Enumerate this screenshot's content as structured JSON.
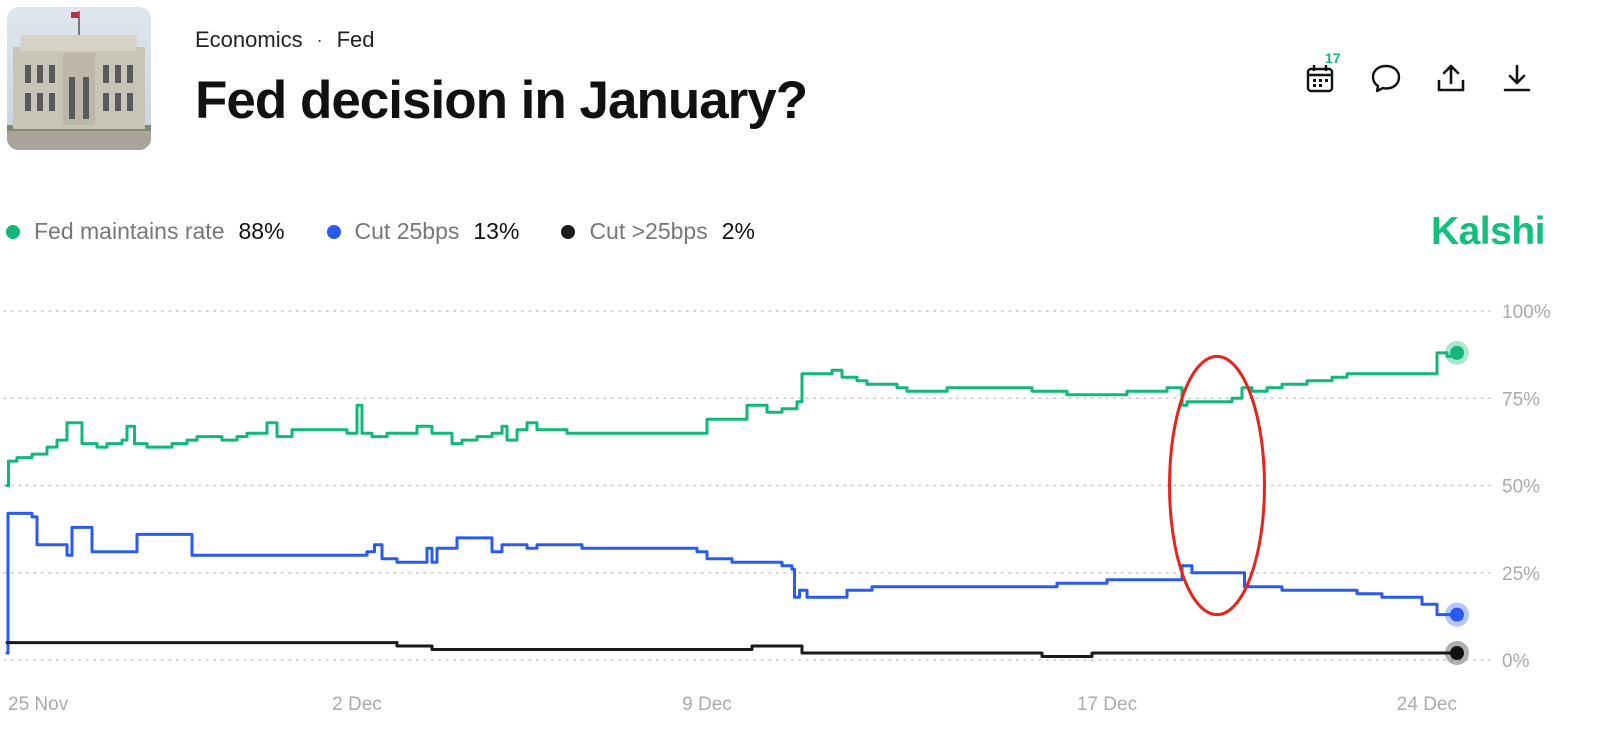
{
  "breadcrumb": {
    "category": "Economics",
    "separator": "·",
    "subcategory": "Fed"
  },
  "title": "Fed decision in January?",
  "toolbar": {
    "calendar_badge": "17"
  },
  "icons": {
    "calendar": "calendar-icon",
    "comment": "comment-icon",
    "share": "share-icon",
    "download": "download-icon"
  },
  "legend": [
    {
      "name": "Fed maintains rate",
      "value": "88%",
      "color": "#12b87a"
    },
    {
      "name": "Cut 25bps",
      "value": "13%",
      "color": "#2a5bf0"
    },
    {
      "name": "Cut >25bps",
      "value": "2%",
      "color": "#1a1a1a"
    }
  ],
  "brand": "Kalshi",
  "chart_data": {
    "type": "line",
    "x_ticks": [
      "25 Nov",
      "2 Dec",
      "9 Dec",
      "17 Dec",
      "24 Dec"
    ],
    "x_tick_days": [
      0,
      7,
      14,
      22,
      29
    ],
    "x_range_days": [
      0,
      29
    ],
    "y_ticks": [
      "100%",
      "75%",
      "50%",
      "25%",
      "0%"
    ],
    "y_tick_values": [
      100,
      75,
      50,
      25,
      0
    ],
    "ylim": [
      0,
      100
    ],
    "grid": true,
    "legend_position": "top-left",
    "annotation": {
      "type": "ellipse",
      "color": "#e8231c",
      "x_center_day": 24.2,
      "y_center": 50,
      "x_radius_days": 0.95,
      "y_radius": 37
    },
    "series": [
      {
        "name": "Fed maintains rate",
        "color": "#12b87a",
        "points": [
          [
            0,
            50
          ],
          [
            0.03,
            57
          ],
          [
            0.2,
            58
          ],
          [
            0.5,
            59
          ],
          [
            0.8,
            61
          ],
          [
            1.0,
            63
          ],
          [
            1.2,
            68
          ],
          [
            1.4,
            68
          ],
          [
            1.5,
            62
          ],
          [
            1.8,
            61
          ],
          [
            2.0,
            62
          ],
          [
            2.3,
            63
          ],
          [
            2.4,
            67
          ],
          [
            2.55,
            62
          ],
          [
            2.8,
            61
          ],
          [
            3.1,
            61
          ],
          [
            3.3,
            62
          ],
          [
            3.6,
            63
          ],
          [
            3.8,
            64
          ],
          [
            4.1,
            64
          ],
          [
            4.3,
            63
          ],
          [
            4.6,
            64
          ],
          [
            4.8,
            65
          ],
          [
            5.0,
            65
          ],
          [
            5.2,
            68
          ],
          [
            5.4,
            64
          ],
          [
            5.7,
            66
          ],
          [
            6.0,
            66
          ],
          [
            6.4,
            66
          ],
          [
            6.8,
            65
          ],
          [
            7.0,
            73
          ],
          [
            7.1,
            65
          ],
          [
            7.3,
            64
          ],
          [
            7.6,
            65
          ],
          [
            8.0,
            65
          ],
          [
            8.2,
            67
          ],
          [
            8.5,
            65
          ],
          [
            8.9,
            62
          ],
          [
            9.1,
            63
          ],
          [
            9.4,
            64
          ],
          [
            9.7,
            65
          ],
          [
            9.9,
            67
          ],
          [
            10.0,
            63
          ],
          [
            10.2,
            66
          ],
          [
            10.4,
            68
          ],
          [
            10.6,
            66
          ],
          [
            11.0,
            66
          ],
          [
            11.2,
            65
          ],
          [
            12.0,
            65
          ],
          [
            13.5,
            65
          ],
          [
            13.9,
            65
          ],
          [
            14.0,
            69
          ],
          [
            14.3,
            69
          ],
          [
            14.6,
            69
          ],
          [
            14.8,
            73
          ],
          [
            15.0,
            73
          ],
          [
            15.2,
            71
          ],
          [
            15.3,
            71
          ],
          [
            15.5,
            72
          ],
          [
            15.8,
            74
          ],
          [
            15.9,
            82
          ],
          [
            16.3,
            82
          ],
          [
            16.5,
            83
          ],
          [
            16.7,
            81
          ],
          [
            17.0,
            80
          ],
          [
            17.2,
            79
          ],
          [
            17.5,
            79
          ],
          [
            17.8,
            78
          ],
          [
            18.0,
            77
          ],
          [
            18.2,
            77
          ],
          [
            18.5,
            77
          ],
          [
            18.8,
            78
          ],
          [
            19.0,
            78
          ],
          [
            19.5,
            78
          ],
          [
            20.0,
            78
          ],
          [
            20.5,
            77
          ],
          [
            21.0,
            77
          ],
          [
            21.2,
            76
          ],
          [
            21.5,
            76
          ],
          [
            21.8,
            76
          ],
          [
            22.0,
            76
          ],
          [
            22.4,
            77
          ],
          [
            22.8,
            77
          ],
          [
            23.2,
            78
          ],
          [
            23.4,
            78
          ],
          [
            23.5,
            73
          ],
          [
            23.6,
            74
          ],
          [
            23.9,
            74
          ],
          [
            24.2,
            74
          ],
          [
            24.5,
            75
          ],
          [
            24.7,
            78
          ],
          [
            24.9,
            77
          ],
          [
            25.2,
            78
          ],
          [
            25.5,
            79
          ],
          [
            26.0,
            80
          ],
          [
            26.5,
            81
          ],
          [
            26.8,
            82
          ],
          [
            27.2,
            82
          ],
          [
            27.8,
            82
          ],
          [
            28.3,
            82
          ],
          [
            28.6,
            88
          ],
          [
            28.8,
            87
          ],
          [
            29.0,
            88
          ]
        ]
      },
      {
        "name": "Cut 25bps",
        "color": "#2a5bf0",
        "points": [
          [
            0,
            2
          ],
          [
            0.02,
            42
          ],
          [
            0.3,
            42
          ],
          [
            0.5,
            41
          ],
          [
            0.6,
            33
          ],
          [
            1.0,
            33
          ],
          [
            1.2,
            30
          ],
          [
            1.3,
            38
          ],
          [
            1.6,
            38
          ],
          [
            1.7,
            31
          ],
          [
            2.0,
            31
          ],
          [
            2.4,
            31
          ],
          [
            2.6,
            36
          ],
          [
            3.3,
            36
          ],
          [
            3.6,
            36
          ],
          [
            3.7,
            30
          ],
          [
            4.3,
            30
          ],
          [
            5.0,
            30
          ],
          [
            6.0,
            30
          ],
          [
            7.0,
            30
          ],
          [
            7.2,
            31
          ],
          [
            7.35,
            33
          ],
          [
            7.5,
            29
          ],
          [
            7.8,
            28
          ],
          [
            8.3,
            28
          ],
          [
            8.4,
            32
          ],
          [
            8.5,
            28
          ],
          [
            8.6,
            32
          ],
          [
            9.0,
            35
          ],
          [
            9.3,
            35
          ],
          [
            9.6,
            35
          ],
          [
            9.7,
            31
          ],
          [
            9.9,
            33
          ],
          [
            10.3,
            33
          ],
          [
            10.4,
            32
          ],
          [
            10.6,
            33
          ],
          [
            11.0,
            33
          ],
          [
            11.5,
            32
          ],
          [
            12.0,
            32
          ],
          [
            13.0,
            32
          ],
          [
            13.8,
            31
          ],
          [
            14.0,
            29
          ],
          [
            14.5,
            28
          ],
          [
            15.0,
            28
          ],
          [
            15.5,
            27
          ],
          [
            15.7,
            26
          ],
          [
            15.75,
            18
          ],
          [
            15.85,
            20
          ],
          [
            16.0,
            18
          ],
          [
            16.5,
            18
          ],
          [
            16.8,
            20
          ],
          [
            17.0,
            20
          ],
          [
            17.3,
            21
          ],
          [
            17.6,
            21
          ],
          [
            18.0,
            21
          ],
          [
            18.5,
            21
          ],
          [
            19.0,
            21
          ],
          [
            19.5,
            21
          ],
          [
            20.0,
            21
          ],
          [
            20.5,
            21
          ],
          [
            21.0,
            22
          ],
          [
            21.5,
            22
          ],
          [
            22.0,
            23
          ],
          [
            22.5,
            23
          ],
          [
            23.0,
            23
          ],
          [
            23.4,
            23
          ],
          [
            23.5,
            27
          ],
          [
            23.7,
            25
          ],
          [
            24.0,
            25
          ],
          [
            24.3,
            25
          ],
          [
            24.6,
            25
          ],
          [
            24.75,
            21
          ],
          [
            25.0,
            21
          ],
          [
            25.5,
            20
          ],
          [
            26.0,
            20
          ],
          [
            26.5,
            20
          ],
          [
            27.0,
            19
          ],
          [
            27.5,
            18
          ],
          [
            28.0,
            18
          ],
          [
            28.3,
            16
          ],
          [
            28.6,
            13
          ],
          [
            29.0,
            13
          ]
        ]
      },
      {
        "name": "Cut >25bps",
        "color": "#1a1a1a",
        "points": [
          [
            0,
            5
          ],
          [
            1.0,
            5
          ],
          [
            3.0,
            5
          ],
          [
            5.0,
            5
          ],
          [
            7.0,
            5
          ],
          [
            7.7,
            5
          ],
          [
            7.8,
            4
          ],
          [
            8.5,
            3
          ],
          [
            9.0,
            3
          ],
          [
            10.0,
            3
          ],
          [
            12.0,
            3
          ],
          [
            14.5,
            3
          ],
          [
            14.9,
            4
          ],
          [
            15.8,
            4
          ],
          [
            15.9,
            2
          ],
          [
            17.0,
            2
          ],
          [
            19.0,
            2
          ],
          [
            20.5,
            2
          ],
          [
            20.7,
            1
          ],
          [
            21.5,
            1
          ],
          [
            21.7,
            2
          ],
          [
            23.0,
            2
          ],
          [
            25.0,
            2
          ],
          [
            27.0,
            2
          ],
          [
            29.0,
            2
          ]
        ]
      }
    ]
  }
}
